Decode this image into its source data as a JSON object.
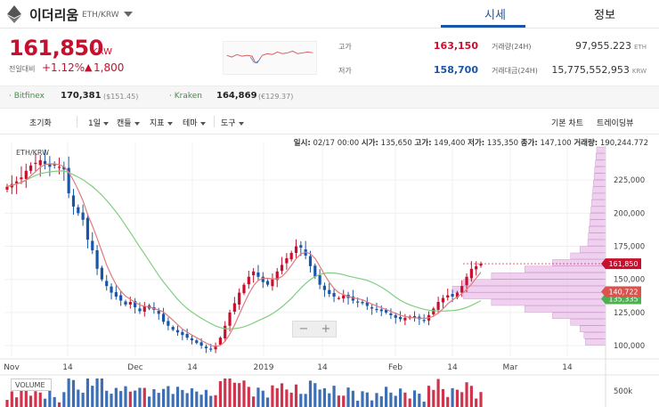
{
  "coin": {
    "name": "이더리움",
    "pair": "ETH/KRW"
  },
  "tabs": [
    {
      "label": "시세"
    },
    {
      "label": "정보"
    }
  ],
  "price": {
    "value": "161,850",
    "unit": "KRW",
    "change_label": "전일대비",
    "change_rate": "+1.12%",
    "change_arrow": "▲",
    "change_amount": "1,800"
  },
  "stats": {
    "high_label": "고가",
    "high": "163,150",
    "low_label": "저가",
    "low": "158,700",
    "volume_label": "거래량(24H)",
    "volume": "97,955.223",
    "volume_unit": "ETH",
    "value_label": "거래대금(24H)",
    "value": "15,775,552,953",
    "value_unit": "KRW"
  },
  "exchanges": [
    {
      "name": "· Bitfinex",
      "price": "170,381",
      "usd": "($151.45)"
    },
    {
      "name": "· Kraken",
      "price": "164,869",
      "usd": "(€129.37)"
    }
  ],
  "toolbar": {
    "reset": "초기화",
    "interval": "1일",
    "candle": "캔들",
    "indicator": "지표",
    "theme": "테마",
    "tools": "도구",
    "basic_chart": "기본 차트",
    "trading_view": "트레이딩뷰"
  },
  "ohlc": {
    "date_label": "일시:",
    "date": "02/17 00:00",
    "open_label": "시가:",
    "open": "135,650",
    "high_label": "고가:",
    "high": "149,400",
    "low_label": "저가:",
    "low": "135,350",
    "close_label": "종가:",
    "close": "147,100",
    "vol_label": "거래량:",
    "vol": "190,244.772"
  },
  "chart_label": "ETH/KRW",
  "zoom": {
    "minus": "−",
    "plus": "+"
  },
  "volume_label": "VOLUME",
  "colors": {
    "up": "#c8102e",
    "down": "#1a56a8",
    "accent": "#1a56a8",
    "ma_short": "#e07b7b",
    "ma_long": "#7fcf7f",
    "profile": "#e6b8e6"
  },
  "chart_data": {
    "type": "candlestick",
    "x_tick_labels": [
      "Nov",
      "14",
      "Dec",
      "14",
      "2019",
      "14",
      "Feb",
      "14",
      "Mar",
      "14"
    ],
    "y_tick_labels": [
      "225,000",
      "200,000",
      "175,000",
      "150,000",
      "125,000",
      "100,000"
    ],
    "y_ticks": [
      225000,
      200000,
      175000,
      150000,
      125000,
      100000
    ],
    "ylim": [
      92000,
      250000
    ],
    "volume_tick_label": "500k",
    "current_price": 161850,
    "current_price_label": "161,850",
    "ma_short_label": "140,722",
    "ma_short_last": 140722,
    "ma_long_label": "135,335",
    "ma_long_last": 135335,
    "closes": [
      220000,
      222000,
      224000,
      227000,
      232000,
      236000,
      238000,
      240000,
      237000,
      235000,
      236000,
      235000,
      233000,
      215000,
      205000,
      200000,
      195000,
      180000,
      172000,
      158000,
      150000,
      145000,
      140000,
      137000,
      134000,
      131000,
      133000,
      129000,
      126000,
      130000,
      128000,
      127000,
      124000,
      118000,
      115000,
      112000,
      110000,
      108000,
      106000,
      104000,
      102000,
      100000,
      98000,
      97000,
      100000,
      106000,
      115000,
      125000,
      132000,
      140000,
      146000,
      152000,
      156000,
      152000,
      148000,
      146000,
      150000,
      156000,
      161000,
      166000,
      170000,
      175000,
      174000,
      168000,
      160000,
      152000,
      146000,
      142000,
      139000,
      137000,
      136000,
      138000,
      136000,
      134000,
      133000,
      132000,
      130000,
      128000,
      127000,
      126000,
      125000,
      123000,
      121000,
      120000,
      121000,
      122000,
      121000,
      120000,
      119000,
      123000,
      128000,
      133000,
      136000,
      138000,
      137000,
      140000,
      145000,
      152000,
      158000,
      160000,
      161850
    ]
  }
}
